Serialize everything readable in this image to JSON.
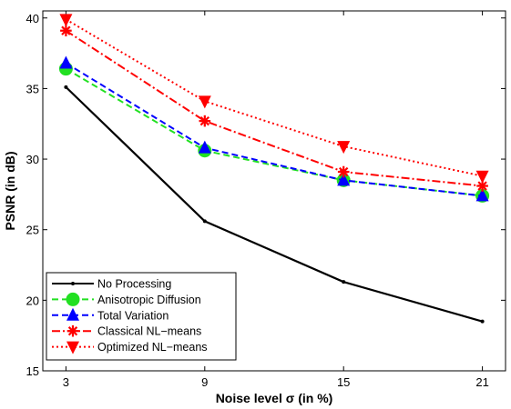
{
  "chart_data": {
    "type": "line",
    "title": "",
    "xlabel": "Noise level σ (in %)",
    "ylabel": "PSNR (in dB)",
    "x": [
      3,
      9,
      15,
      21
    ],
    "x_ticks": [
      "3",
      "9",
      "15",
      "21"
    ],
    "xlim": [
      2,
      22
    ],
    "ylim": [
      15,
      40.5
    ],
    "y_ticks": [
      15,
      20,
      25,
      30,
      35,
      40
    ],
    "grid": false,
    "legend_position": "bottom-left",
    "series": [
      {
        "name": "No Processing",
        "values": [
          35.1,
          25.6,
          21.3,
          18.5
        ],
        "color": "#000000",
        "dash": "solid",
        "marker": "dot"
      },
      {
        "name": "Anisotropic Diffusion",
        "values": [
          36.4,
          30.6,
          28.5,
          27.4
        ],
        "color": "#22e022",
        "dash": "dashed",
        "marker": "circle"
      },
      {
        "name": "Total Variation",
        "values": [
          36.8,
          30.8,
          28.5,
          27.4
        ],
        "color": "#0000ff",
        "dash": "dashed",
        "marker": "triangle-up"
      },
      {
        "name": "Classical NL−means",
        "values": [
          39.1,
          32.7,
          29.1,
          28.1
        ],
        "color": "#ff0000",
        "dash": "dashdot",
        "marker": "asterisk"
      },
      {
        "name": "Optimized NL−means",
        "values": [
          39.9,
          34.1,
          30.9,
          28.8
        ],
        "color": "#ff0000",
        "dash": "dotted",
        "marker": "triangle-down"
      }
    ]
  }
}
